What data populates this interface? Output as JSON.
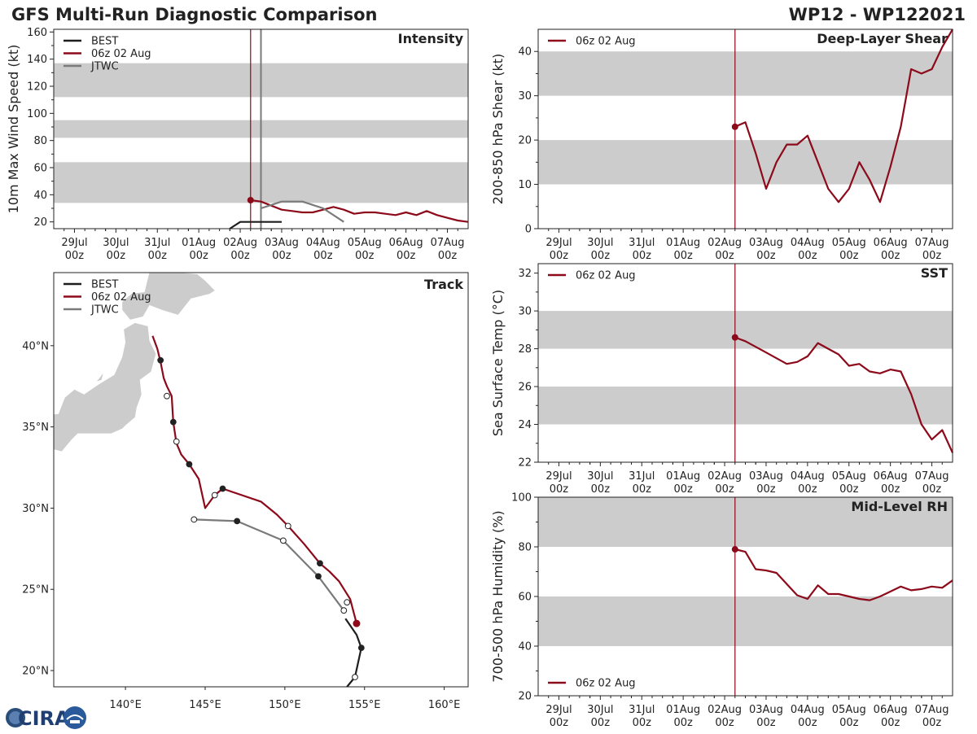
{
  "header": {
    "title": "GFS Multi-Run Diagnostic Comparison",
    "storm_id": "WP12 - WP122021"
  },
  "x_ticks": [
    {
      "day": "29Jul",
      "hour": "00z"
    },
    {
      "day": "30Jul",
      "hour": "00z"
    },
    {
      "day": "31Jul",
      "hour": "00z"
    },
    {
      "day": "01Aug",
      "hour": "00z"
    },
    {
      "day": "02Aug",
      "hour": "00z"
    },
    {
      "day": "03Aug",
      "hour": "00z"
    },
    {
      "day": "04Aug",
      "hour": "00z"
    },
    {
      "day": "05Aug",
      "hour": "00z"
    },
    {
      "day": "06Aug",
      "hour": "00z"
    },
    {
      "day": "07Aug",
      "hour": "00z"
    }
  ],
  "logo": {
    "text": "CIRA"
  },
  "colors": {
    "best": "#1e1e1e",
    "gfs": "#8c0a1a",
    "jtwc": "#7a7a7a",
    "band": "#cccccc",
    "land": "#cccccc"
  },
  "chart_data": [
    {
      "id": "intensity",
      "type": "line",
      "title": "Intensity",
      "ylabel": "10m Max Wind Speed (kt)",
      "xunit": "days since 29Jul 00z",
      "xlim": [
        -0.5,
        9.5
      ],
      "ylim": [
        15,
        162
      ],
      "yticks": [
        20,
        40,
        60,
        80,
        100,
        120,
        140,
        160
      ],
      "bands": [
        [
          34,
          64
        ],
        [
          82,
          95
        ],
        [
          112,
          137
        ]
      ],
      "init_x": 4.25,
      "init_x2": 4.5,
      "legend": [
        "BEST",
        "06z 02 Aug",
        "JTWC"
      ],
      "series": [
        {
          "name": "BEST",
          "key": "best",
          "x": [
            3.75,
            4.0,
            4.5,
            5.0
          ],
          "y": [
            15,
            20,
            20,
            20
          ]
        },
        {
          "name": "06z 02 Aug",
          "key": "gfs",
          "x": [
            4.25,
            4.5,
            4.75,
            5.0,
            5.25,
            5.5,
            5.75,
            6.0,
            6.25,
            6.5,
            6.75,
            7.0,
            7.25,
            7.5,
            7.75,
            8.0,
            8.25,
            8.5,
            8.75,
            9.0,
            9.25,
            9.5
          ],
          "y": [
            36,
            35,
            32,
            29,
            28,
            27,
            27,
            29,
            31,
            29,
            26,
            27,
            27,
            26,
            25,
            27,
            25,
            28,
            25,
            23,
            21,
            20
          ],
          "marker_first": true
        },
        {
          "name": "JTWC",
          "key": "jtwc",
          "x": [
            4.5,
            5.0,
            5.5,
            6.0,
            6.5
          ],
          "y": [
            30,
            35,
            35,
            30,
            20
          ]
        }
      ]
    },
    {
      "id": "shear",
      "type": "line",
      "title": "Deep-Layer Shear",
      "ylabel": "200-850 hPa Shear (kt)",
      "xlim": [
        -0.5,
        9.5
      ],
      "ylim": [
        0,
        45
      ],
      "yticks": [
        0,
        10,
        20,
        30,
        40
      ],
      "bands": [
        [
          10,
          20
        ],
        [
          30,
          40
        ]
      ],
      "init_x": 4.25,
      "legend": [
        "06z 02 Aug"
      ],
      "series": [
        {
          "name": "06z 02 Aug",
          "key": "gfs",
          "x": [
            4.25,
            4.5,
            4.75,
            5.0,
            5.25,
            5.5,
            5.75,
            6.0,
            6.25,
            6.5,
            6.75,
            7.0,
            7.25,
            7.5,
            7.75,
            8.0,
            8.25,
            8.5,
            8.75,
            9.0,
            9.25,
            9.5
          ],
          "y": [
            23,
            24,
            17,
            9,
            15,
            19,
            19,
            21,
            15,
            9,
            6,
            9,
            15,
            11,
            6,
            14,
            23,
            36,
            35,
            36,
            41,
            45
          ],
          "marker_first": true
        }
      ]
    },
    {
      "id": "sst",
      "type": "line",
      "title": "SST",
      "ylabel": "Sea Surface Temp (°C)",
      "xlim": [
        -0.5,
        9.5
      ],
      "ylim": [
        22,
        32.5
      ],
      "yticks": [
        22,
        24,
        26,
        28,
        30,
        32
      ],
      "bands": [
        [
          24,
          26
        ],
        [
          28,
          30
        ]
      ],
      "init_x": 4.25,
      "legend": [
        "06z 02 Aug"
      ],
      "series": [
        {
          "name": "06z 02 Aug",
          "key": "gfs",
          "x": [
            4.25,
            4.5,
            4.75,
            5.0,
            5.25,
            5.5,
            5.75,
            6.0,
            6.25,
            6.5,
            6.75,
            7.0,
            7.25,
            7.5,
            7.75,
            8.0,
            8.25,
            8.5,
            8.75,
            9.0,
            9.25,
            9.5
          ],
          "y": [
            28.6,
            28.4,
            28.1,
            27.8,
            27.5,
            27.2,
            27.3,
            27.6,
            28.3,
            28.0,
            27.7,
            27.1,
            27.2,
            26.8,
            26.7,
            26.9,
            26.8,
            25.6,
            24.0,
            23.2,
            23.7,
            22.5
          ],
          "marker_first": true
        }
      ]
    },
    {
      "id": "rh",
      "type": "line",
      "title": "Mid-Level RH",
      "ylabel": "700-500 hPa Humidity (%)",
      "xlim": [
        -0.5,
        9.5
      ],
      "ylim": [
        20,
        100
      ],
      "yticks": [
        20,
        40,
        60,
        80,
        100
      ],
      "bands": [
        [
          40,
          60
        ],
        [
          80,
          100
        ]
      ],
      "init_x": 4.25,
      "legend": [
        "06z 02 Aug"
      ],
      "series": [
        {
          "name": "06z 02 Aug",
          "key": "gfs",
          "x": [
            4.25,
            4.5,
            4.75,
            5.0,
            5.25,
            5.5,
            5.75,
            6.0,
            6.25,
            6.5,
            6.75,
            7.0,
            7.25,
            7.5,
            7.75,
            8.0,
            8.25,
            8.5,
            8.75,
            9.0,
            9.25,
            9.5
          ],
          "y": [
            79,
            78,
            71,
            70.5,
            69.5,
            65,
            60.5,
            59,
            64.5,
            61,
            61,
            60,
            59,
            58.5,
            60,
            62,
            64,
            62.5,
            63,
            64,
            63.5,
            66.5
          ],
          "marker_first": true
        }
      ]
    },
    {
      "id": "track",
      "type": "map-track",
      "title": "Track",
      "xlim": [
        135.5,
        161.5
      ],
      "ylim": [
        19,
        44.5
      ],
      "xticks": [
        140,
        145,
        150,
        155,
        160
      ],
      "xticklabels": [
        "140°E",
        "145°E",
        "150°E",
        "155°E",
        "160°E"
      ],
      "yticks": [
        20,
        25,
        30,
        35,
        40
      ],
      "yticklabels": [
        "20°N",
        "25°N",
        "30°N",
        "35°N",
        "40°N"
      ],
      "legend": [
        "BEST",
        "06z 02 Aug",
        "JTWC"
      ],
      "series": [
        {
          "name": "BEST",
          "key": "best",
          "lon": [
            153.9,
            154.4,
            154.8,
            154.5,
            153.8
          ],
          "lat": [
            19.0,
            19.6,
            21.4,
            22.2,
            23.2
          ],
          "markers": [
            {
              "lon": 154.4,
              "lat": 19.6,
              "filled": false
            },
            {
              "lon": 154.8,
              "lat": 21.4,
              "filled": true
            }
          ]
        },
        {
          "name": "06z 02 Aug",
          "key": "gfs",
          "lon": [
            154.5,
            154.1,
            153.4,
            152.8,
            152.2,
            151.2,
            150.2,
            149.5,
            148.5,
            146.1,
            145.6,
            145.0,
            144.6,
            144.0,
            143.5,
            143.2,
            143.0,
            142.9,
            142.6,
            142.4,
            142.2,
            142.0,
            141.7
          ],
          "lat": [
            22.9,
            24.4,
            25.5,
            26.1,
            26.6,
            27.8,
            28.9,
            29.6,
            30.4,
            31.2,
            30.8,
            30.0,
            31.8,
            32.7,
            33.3,
            34.0,
            35.3,
            36.9,
            37.5,
            38.0,
            39.0,
            39.8,
            40.6
          ],
          "markers": [
            {
              "lon": 154.5,
              "lat": 22.9,
              "filled": true,
              "big": true
            },
            {
              "lon": 153.9,
              "lat": 24.2,
              "filled": false
            },
            {
              "lon": 152.2,
              "lat": 26.6,
              "filled": true
            },
            {
              "lon": 150.2,
              "lat": 28.9,
              "filled": false
            },
            {
              "lon": 146.1,
              "lat": 31.2,
              "filled": true
            },
            {
              "lon": 145.6,
              "lat": 30.8,
              "filled": false
            },
            {
              "lon": 144.0,
              "lat": 32.7,
              "filled": true
            },
            {
              "lon": 143.2,
              "lat": 34.1,
              "filled": false
            },
            {
              "lon": 143.0,
              "lat": 35.3,
              "filled": true
            },
            {
              "lon": 142.6,
              "lat": 36.9,
              "filled": false
            },
            {
              "lon": 142.2,
              "lat": 39.1,
              "filled": true
            }
          ]
        },
        {
          "name": "JTWC",
          "key": "jtwc",
          "lon": [
            153.7,
            152.1,
            149.9,
            147.0,
            144.3
          ],
          "lat": [
            23.7,
            25.8,
            28.0,
            29.2,
            29.3
          ],
          "markers": [
            {
              "lon": 153.7,
              "lat": 23.7,
              "filled": false,
              "grey": true
            },
            {
              "lon": 152.1,
              "lat": 25.8,
              "filled": true
            },
            {
              "lon": 149.9,
              "lat": 28.0,
              "filled": false
            },
            {
              "lon": 147.0,
              "lat": 29.2,
              "filled": true
            },
            {
              "lon": 144.3,
              "lat": 29.3,
              "filled": false
            }
          ]
        }
      ]
    }
  ]
}
